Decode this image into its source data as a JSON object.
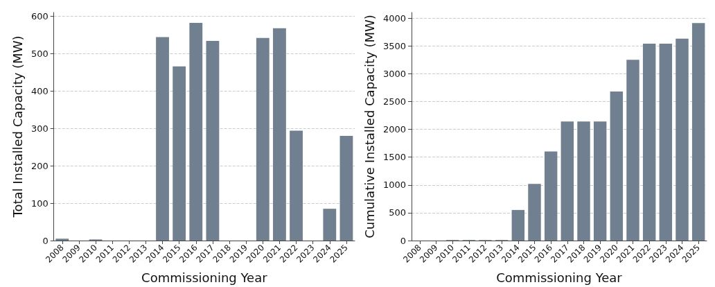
{
  "chart_data": [
    {
      "type": "bar",
      "xlabel": "Commissioning Year",
      "ylabel": "Total Installed Capacity (MW)",
      "categories": [
        "2008",
        "2009",
        "2010",
        "2011",
        "2012",
        "2013",
        "2014",
        "2015",
        "2016",
        "2017",
        "2018",
        "2019",
        "2020",
        "2021",
        "2022",
        "2023",
        "2024",
        "2025"
      ],
      "values": [
        5,
        0,
        3,
        0,
        0,
        0,
        544,
        466,
        582,
        534,
        0,
        0,
        542,
        568,
        294,
        0,
        85,
        280
      ],
      "color": "#708090",
      "ylim": [
        0,
        610
      ],
      "yticks": [
        0,
        100,
        200,
        300,
        400,
        500,
        600
      ],
      "grid": "y"
    },
    {
      "type": "bar",
      "xlabel": "Commissioning Year",
      "ylabel": "Cumulative Installed Capacity (MW)",
      "categories": [
        "2008",
        "2009",
        "2010",
        "2011",
        "2012",
        "2013",
        "2014",
        "2015",
        "2016",
        "2017",
        "2018",
        "2019",
        "2020",
        "2021",
        "2022",
        "2023",
        "2024",
        "2025"
      ],
      "values": [
        0,
        0,
        10,
        10,
        10,
        10,
        550,
        1020,
        1600,
        2140,
        2140,
        2140,
        2680,
        3250,
        3540,
        3540,
        3630,
        3910
      ],
      "color": "#708090",
      "ylim": [
        0,
        4100
      ],
      "yticks": [
        0,
        500,
        1000,
        1500,
        2000,
        2500,
        3000,
        3500,
        4000
      ],
      "grid": "y"
    }
  ]
}
